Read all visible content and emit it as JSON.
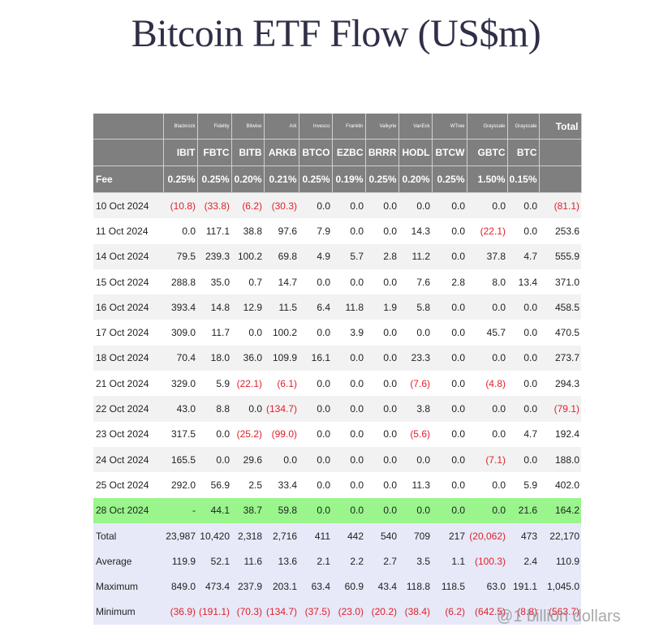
{
  "title": "Bitcoin ETF Flow (US$m)",
  "watermark": "@1 billion dollars",
  "colors": {
    "header_bg": "#7f7f7f",
    "highlight_row": "#99f58c",
    "stat_rows": "#e7e9f8",
    "negative": "#e0202b"
  },
  "chart_data": {
    "type": "table",
    "title": "Bitcoin ETF Flow (US$m)",
    "fee_label": "Fee",
    "total_header": "Total",
    "columns": [
      {
        "issuer": "Blackrock",
        "ticker": "IBIT",
        "fee": "0.25%"
      },
      {
        "issuer": "Fidelity",
        "ticker": "FBTC",
        "fee": "0.25%"
      },
      {
        "issuer": "Bitwise",
        "ticker": "BITB",
        "fee": "0.20%"
      },
      {
        "issuer": "Ark",
        "ticker": "ARKB",
        "fee": "0.21%"
      },
      {
        "issuer": "Invesco",
        "ticker": "BTCO",
        "fee": "0.25%"
      },
      {
        "issuer": "Franklin",
        "ticker": "EZBC",
        "fee": "0.19%"
      },
      {
        "issuer": "Valkyrie",
        "ticker": "BRRR",
        "fee": "0.25%"
      },
      {
        "issuer": "VanEck",
        "ticker": "HODL",
        "fee": "0.20%"
      },
      {
        "issuer": "WTree",
        "ticker": "BTCW",
        "fee": "0.25%"
      },
      {
        "issuer": "Grayscale",
        "ticker": "GBTC",
        "fee": "1.50%"
      },
      {
        "issuer": "Grayscale",
        "ticker": "BTC",
        "fee": "0.15%"
      }
    ],
    "rows": [
      {
        "label": "10 Oct 2024",
        "values": [
          "(10.8)",
          "(33.8)",
          "(6.2)",
          "(30.3)",
          "0.0",
          "0.0",
          "0.0",
          "0.0",
          "0.0",
          "0.0",
          "0.0"
        ],
        "total": "(81.1)"
      },
      {
        "label": "11 Oct 2024",
        "values": [
          "0.0",
          "117.1",
          "38.8",
          "97.6",
          "7.9",
          "0.0",
          "0.0",
          "14.3",
          "0.0",
          "(22.1)",
          "0.0"
        ],
        "total": "253.6"
      },
      {
        "label": "14 Oct 2024",
        "values": [
          "79.5",
          "239.3",
          "100.2",
          "69.8",
          "4.9",
          "5.7",
          "2.8",
          "11.2",
          "0.0",
          "37.8",
          "4.7"
        ],
        "total": "555.9"
      },
      {
        "label": "15 Oct 2024",
        "values": [
          "288.8",
          "35.0",
          "0.7",
          "14.7",
          "0.0",
          "0.0",
          "0.0",
          "7.6",
          "2.8",
          "8.0",
          "13.4"
        ],
        "total": "371.0"
      },
      {
        "label": "16 Oct 2024",
        "values": [
          "393.4",
          "14.8",
          "12.9",
          "11.5",
          "6.4",
          "11.8",
          "1.9",
          "5.8",
          "0.0",
          "0.0",
          "0.0"
        ],
        "total": "458.5"
      },
      {
        "label": "17 Oct 2024",
        "values": [
          "309.0",
          "11.7",
          "0.0",
          "100.2",
          "0.0",
          "3.9",
          "0.0",
          "0.0",
          "0.0",
          "45.7",
          "0.0"
        ],
        "total": "470.5"
      },
      {
        "label": "18 Oct 2024",
        "values": [
          "70.4",
          "18.0",
          "36.0",
          "109.9",
          "16.1",
          "0.0",
          "0.0",
          "23.3",
          "0.0",
          "0.0",
          "0.0"
        ],
        "total": "273.7"
      },
      {
        "label": "21 Oct 2024",
        "values": [
          "329.0",
          "5.9",
          "(22.1)",
          "(6.1)",
          "0.0",
          "0.0",
          "0.0",
          "(7.6)",
          "0.0",
          "(4.8)",
          "0.0"
        ],
        "total": "294.3"
      },
      {
        "label": "22 Oct 2024",
        "values": [
          "43.0",
          "8.8",
          "0.0",
          "(134.7)",
          "0.0",
          "0.0",
          "0.0",
          "3.8",
          "0.0",
          "0.0",
          "0.0"
        ],
        "total": "(79.1)"
      },
      {
        "label": "23 Oct 2024",
        "values": [
          "317.5",
          "0.0",
          "(25.2)",
          "(99.0)",
          "0.0",
          "0.0",
          "0.0",
          "(5.6)",
          "0.0",
          "0.0",
          "4.7"
        ],
        "total": "192.4"
      },
      {
        "label": "24 Oct 2024",
        "values": [
          "165.5",
          "0.0",
          "29.6",
          "0.0",
          "0.0",
          "0.0",
          "0.0",
          "0.0",
          "0.0",
          "(7.1)",
          "0.0"
        ],
        "total": "188.0"
      },
      {
        "label": "25 Oct 2024",
        "values": [
          "292.0",
          "56.9",
          "2.5",
          "33.4",
          "0.0",
          "0.0",
          "0.0",
          "11.3",
          "0.0",
          "0.0",
          "5.9"
        ],
        "total": "402.0"
      },
      {
        "label": "28 Oct 2024",
        "values": [
          "-",
          "44.1",
          "38.7",
          "59.8",
          "0.0",
          "0.0",
          "0.0",
          "0.0",
          "0.0",
          "0.0",
          "21.6"
        ],
        "total": "164.2",
        "highlight": true
      }
    ],
    "stats": [
      {
        "label": "Total",
        "values": [
          "23,987",
          "10,420",
          "2,318",
          "2,716",
          "411",
          "442",
          "540",
          "709",
          "217",
          "(20,062)",
          "473"
        ],
        "total": "22,170"
      },
      {
        "label": "Average",
        "values": [
          "119.9",
          "52.1",
          "11.6",
          "13.6",
          "2.1",
          "2.2",
          "2.7",
          "3.5",
          "1.1",
          "(100.3)",
          "2.4"
        ],
        "total": "110.9"
      },
      {
        "label": "Maximum",
        "values": [
          "849.0",
          "473.4",
          "237.9",
          "203.1",
          "63.4",
          "60.9",
          "43.4",
          "118.8",
          "118.5",
          "63.0",
          "191.1"
        ],
        "total": "1,045.0"
      },
      {
        "label": "Minimum",
        "values": [
          "(36.9)",
          "(191.1)",
          "(70.3)",
          "(134.7)",
          "(37.5)",
          "(23.0)",
          "(20.2)",
          "(38.4)",
          "(6.2)",
          "(642.5)",
          "(8.8)"
        ],
        "total": "(563.7)"
      }
    ]
  }
}
